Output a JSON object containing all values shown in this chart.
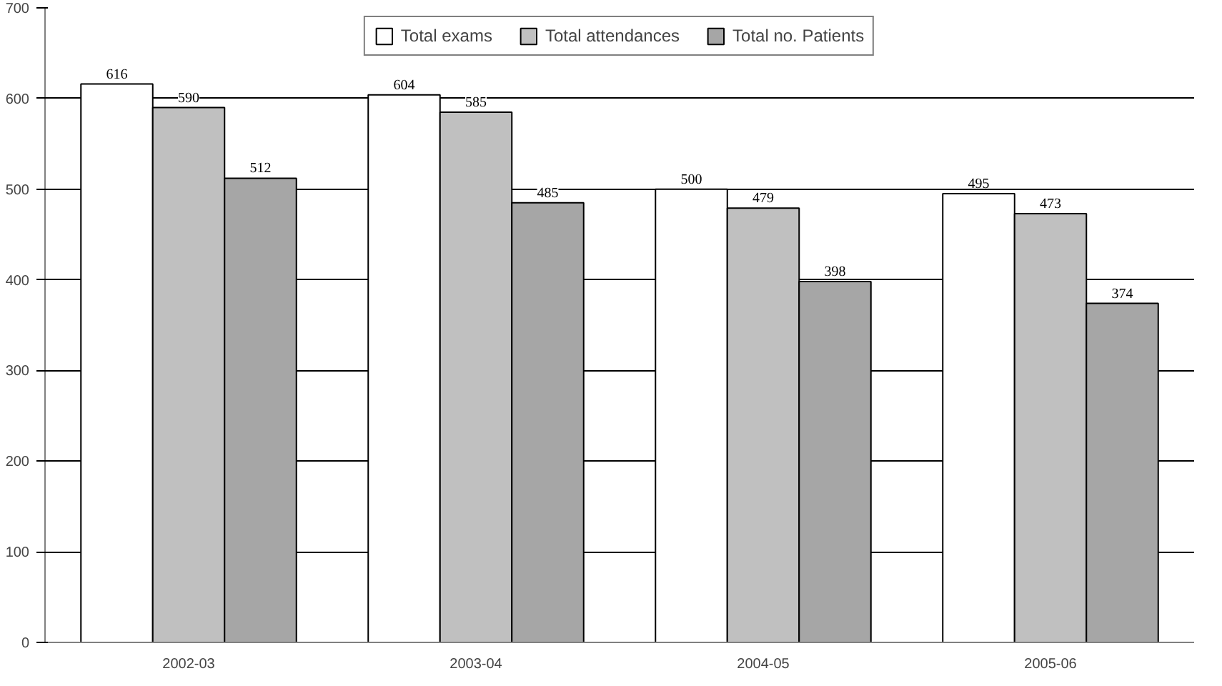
{
  "chart_data": {
    "type": "bar",
    "categories": [
      "2002-03",
      "2003-04",
      "2004-05",
      "2005-06"
    ],
    "series": [
      {
        "name": "Total exams",
        "color": "#ffffff",
        "values": [
          616,
          604,
          500,
          495
        ]
      },
      {
        "name": "Total attendances",
        "color": "#c0c0c0",
        "values": [
          590,
          585,
          479,
          473
        ]
      },
      {
        "name": "Total no. Patients",
        "color": "#a6a6a6",
        "values": [
          512,
          485,
          398,
          374
        ]
      }
    ],
    "ylim": [
      0,
      700
    ],
    "yticks": [
      0,
      100,
      200,
      300,
      400,
      500,
      600,
      700
    ],
    "grid": "y",
    "legend": "top",
    "data_labels": true
  }
}
